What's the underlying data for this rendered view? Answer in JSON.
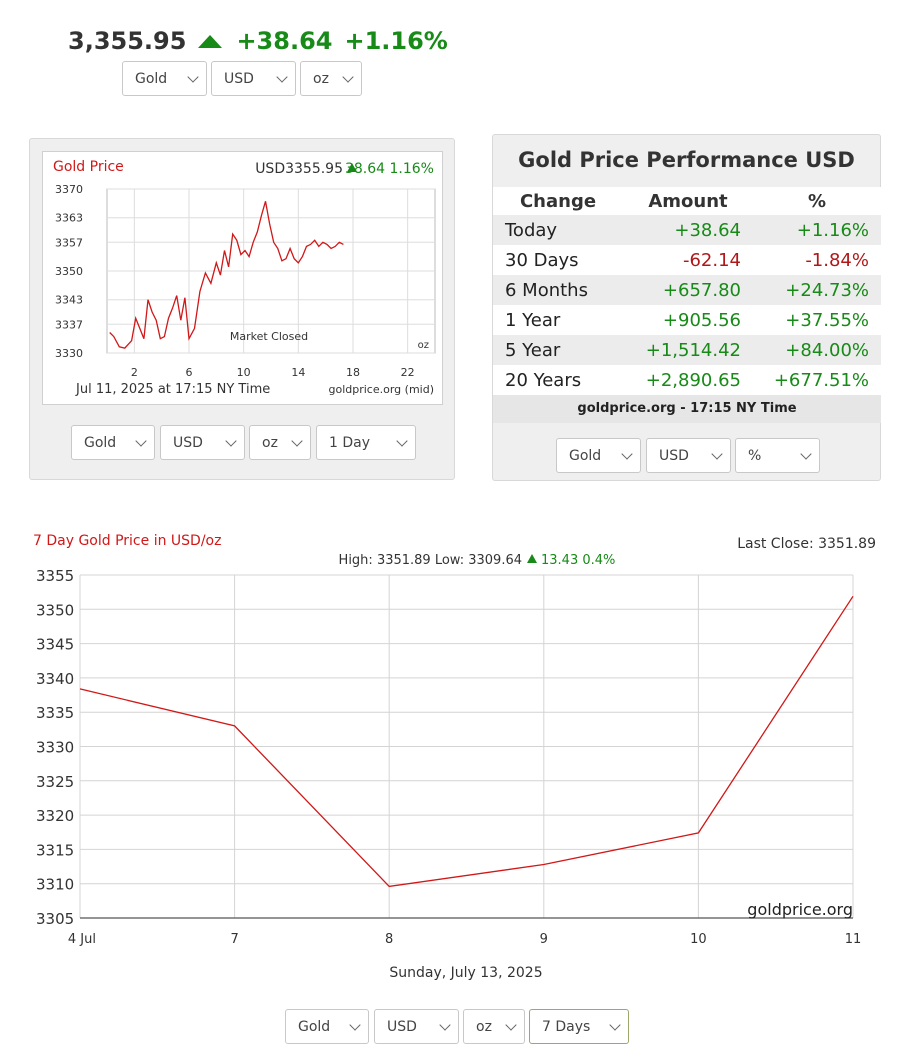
{
  "ticker": {
    "price": "3,355.95",
    "change": "+38.64",
    "percent": "+1.16%",
    "arrow_icon": "up-triangle-icon",
    "color": "#178a17"
  },
  "top_selects": {
    "metal": "Gold",
    "currency": "USD",
    "unit": "oz"
  },
  "small_chart": {
    "title": "Gold Price",
    "quote_prefix": "USD3355.95",
    "quote_change": "38.64 1.16%",
    "market_status": "Market Closed",
    "unit_label": "oz",
    "date_label": "Jul 11, 2025 at 17:15 NY Time",
    "source_label": "goldprice.org (mid)",
    "selects": {
      "metal": "Gold",
      "currency": "USD",
      "unit": "oz",
      "range": "1 Day"
    }
  },
  "performance": {
    "title": "Gold Price Performance USD",
    "headers": {
      "change": "Change",
      "amount": "Amount",
      "percent": "%"
    },
    "rows": [
      {
        "label": "Today",
        "amount": "+38.64",
        "percent": "+1.16%",
        "positive": true
      },
      {
        "label": "30 Days",
        "amount": "-62.14",
        "percent": "-1.84%",
        "positive": false
      },
      {
        "label": "6 Months",
        "amount": "+657.80",
        "percent": "+24.73%",
        "positive": true
      },
      {
        "label": "1 Year",
        "amount": "+905.56",
        "percent": "+37.55%",
        "positive": true
      },
      {
        "label": "5 Year",
        "amount": "+1,514.42",
        "percent": "+84.00%",
        "positive": true
      },
      {
        "label": "20 Years",
        "amount": "+2,890.65",
        "percent": "+677.51%",
        "positive": true
      }
    ],
    "footer": "goldprice.org - 17:15 NY Time",
    "selects": {
      "metal": "Gold",
      "currency": "USD",
      "mode": "%"
    }
  },
  "big_chart": {
    "title": "7 Day Gold Price in USD/oz",
    "last_close": "Last Close: 3351.89",
    "stats_text": "High: 3351.89 Low: 3309.64",
    "stats_change": "13.43 0.4%",
    "watermark": "goldprice.org",
    "date_label": "Sunday, July 13, 2025",
    "selects": {
      "metal": "Gold",
      "currency": "USD",
      "unit": "oz",
      "range": "7 Days"
    }
  },
  "chart_data": [
    {
      "type": "line",
      "title": "Gold Price",
      "xlabel": "",
      "ylabel": "",
      "xlim": [
        0,
        24
      ],
      "ylim": [
        3330,
        3370
      ],
      "x_ticks": [
        2,
        6,
        10,
        14,
        18,
        22
      ],
      "y_ticks": [
        3330,
        3337,
        3343,
        3350,
        3357,
        3363,
        3370
      ],
      "grid": true,
      "color": "#d01818",
      "series": [
        {
          "x": [
            0.2,
            0.5,
            0.9,
            1.3,
            1.8,
            2.1,
            2.4,
            2.7,
            3.0,
            3.3,
            3.6,
            3.9,
            4.2,
            4.5,
            4.8,
            5.1,
            5.4,
            5.7,
            6.0,
            6.4,
            6.8,
            7.2,
            7.6,
            8.0,
            8.3,
            8.6,
            8.9,
            9.2,
            9.5,
            9.8,
            10.1,
            10.4,
            10.7,
            11.0,
            11.3,
            11.6,
            11.9,
            12.2,
            12.5,
            12.8,
            13.1,
            13.4,
            13.7,
            14.0,
            14.3,
            14.6,
            14.9,
            15.2,
            15.5,
            15.8,
            16.1,
            16.4,
            16.7,
            17.0,
            17.3
          ],
          "y": [
            3335.0,
            3334.0,
            3331.5,
            3331.2,
            3333.0,
            3338.5,
            3336.0,
            3333.5,
            3343.0,
            3340.0,
            3338.0,
            3333.5,
            3334.0,
            3338.5,
            3341.0,
            3344.0,
            3338.0,
            3343.5,
            3333.5,
            3336.0,
            3345.0,
            3349.5,
            3347.0,
            3352.0,
            3349.0,
            3355.0,
            3351.0,
            3359.0,
            3357.5,
            3354.0,
            3355.0,
            3353.5,
            3357.0,
            3359.5,
            3363.5,
            3367.0,
            3361.5,
            3357.0,
            3355.5,
            3352.5,
            3353.0,
            3355.5,
            3353.0,
            3352.0,
            3353.5,
            3356.0,
            3356.5,
            3357.5,
            3356.0,
            3357.0,
            3356.5,
            3355.5,
            3356.0,
            3357.0,
            3356.5
          ]
        }
      ]
    },
    {
      "type": "line",
      "title": "7 Day Gold Price in USD/oz",
      "xlabel": "Sunday, July 13, 2025",
      "ylabel": "",
      "categories": [
        "4 Jul",
        "7",
        "8",
        "9",
        "10",
        "11"
      ],
      "ylim": [
        3305,
        3355
      ],
      "y_ticks": [
        3305,
        3310,
        3315,
        3320,
        3325,
        3330,
        3335,
        3340,
        3345,
        3350,
        3355
      ],
      "grid": true,
      "color": "#d01818",
      "series": [
        {
          "values": [
            3338.4,
            3333.0,
            3309.6,
            3312.8,
            3317.4,
            3351.9
          ]
        }
      ]
    }
  ]
}
